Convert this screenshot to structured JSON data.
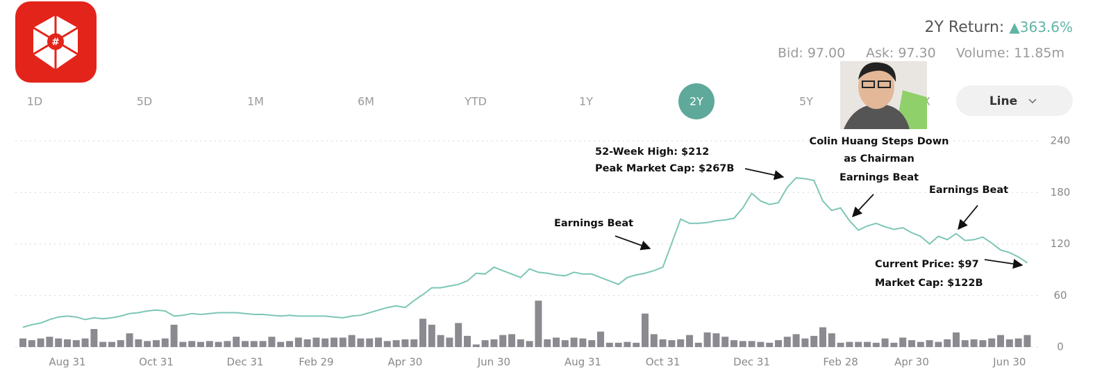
{
  "header": {
    "return_label": "2Y Return:",
    "return_value": "▲363.6%",
    "bid": "Bid: 97.00",
    "ask": "Ask: 97.30",
    "volume": "Volume: 11.85m",
    "ranges": [
      "1D",
      "5D",
      "1M",
      "6M",
      "YTD",
      "1Y",
      "2Y",
      "5Y",
      "MAX"
    ],
    "selected_range": "2Y",
    "chart_style": "Line"
  },
  "chart_data": {
    "type": "line",
    "color": "#7cc6b6",
    "volume_color": "#8b8a90",
    "grid": true,
    "ylim": [
      0,
      240
    ],
    "yticks": [
      0,
      60,
      120,
      180,
      240
    ],
    "categories": [
      null,
      null,
      null,
      null,
      null,
      "Aug 31",
      null,
      null,
      null,
      null,
      null,
      null,
      null,
      null,
      null,
      "Oct 31",
      null,
      null,
      null,
      null,
      null,
      null,
      null,
      null,
      null,
      "Dec 31",
      null,
      null,
      null,
      null,
      null,
      null,
      null,
      "Feb 29",
      null,
      null,
      null,
      null,
      null,
      null,
      null,
      null,
      null,
      "Apr 30",
      null,
      null,
      null,
      null,
      null,
      null,
      null,
      null,
      null,
      "Jun 30",
      null,
      null,
      null,
      null,
      null,
      null,
      null,
      null,
      null,
      "Aug 31",
      null,
      null,
      null,
      null,
      null,
      null,
      null,
      null,
      "Oct 31",
      null,
      null,
      null,
      null,
      null,
      null,
      null,
      null,
      null,
      "Dec 31",
      null,
      null,
      null,
      null,
      null,
      null,
      null,
      null,
      null,
      "Feb 28",
      null,
      null,
      null,
      null,
      null,
      null,
      null,
      "Apr 30",
      null,
      null,
      null,
      null,
      null,
      null,
      null,
      null,
      null,
      null,
      "Jun 30",
      null,
      null
    ],
    "values": [
      23,
      26,
      28,
      32,
      35,
      36,
      35,
      32,
      34,
      33,
      34,
      36,
      39,
      40,
      42,
      43,
      42,
      36,
      37,
      39,
      38,
      39,
      40,
      40,
      40,
      39,
      38,
      38,
      37,
      36,
      37,
      36,
      36,
      36,
      36,
      35,
      34,
      36,
      37,
      40,
      43,
      46,
      48,
      46,
      54,
      61,
      69,
      69,
      71,
      73,
      77,
      86,
      85,
      93,
      89,
      85,
      81,
      91,
      87,
      86,
      84,
      83,
      87,
      85,
      85,
      81,
      77,
      73,
      81,
      84,
      86,
      89,
      93,
      121,
      149,
      144,
      144,
      145,
      147,
      148,
      150,
      162,
      179,
      170,
      166,
      168,
      186,
      197,
      196,
      194,
      170,
      159,
      162,
      147,
      136,
      141,
      144,
      140,
      137,
      139,
      133,
      129,
      120,
      129,
      125,
      132,
      124,
      125,
      128,
      121,
      113,
      110,
      105,
      98
    ],
    "volume": [
      10,
      8,
      10,
      12,
      10,
      9,
      8,
      10,
      21,
      6,
      6,
      8,
      16,
      9,
      7,
      8,
      10,
      26,
      6,
      7,
      6,
      7,
      6,
      7,
      12,
      7,
      7,
      7,
      12,
      6,
      7,
      11,
      9,
      11,
      10,
      11,
      11,
      14,
      10,
      10,
      11,
      7,
      8,
      9,
      9,
      33,
      26,
      14,
      11,
      28,
      13,
      3,
      8,
      9,
      14,
      15,
      9,
      7,
      54,
      9,
      11,
      8,
      11,
      10,
      8,
      18,
      5,
      5,
      6,
      5,
      39,
      15,
      9,
      8,
      9,
      14,
      5,
      17,
      16,
      12,
      8,
      7,
      7,
      6,
      5,
      8,
      12,
      15,
      10,
      13,
      23,
      16,
      5,
      6,
      6,
      6,
      5,
      10,
      5,
      11,
      8,
      6,
      8,
      6,
      9,
      17,
      8,
      9,
      8,
      10,
      14,
      9,
      10,
      14
    ],
    "annotations": [
      {
        "lines": [
          "52-Week High: $212",
          "Peak Market Cap: $267B"
        ]
      },
      {
        "lines": [
          "Earnings Beat"
        ]
      },
      {
        "lines": [
          "Colin Huang Steps Down",
          "as Chairman"
        ]
      },
      {
        "lines": [
          "Earnings Beat"
        ]
      },
      {
        "lines": [
          "Earnings Beat"
        ]
      },
      {
        "lines": [
          "Current Price: $97",
          "Market Cap: $122B"
        ]
      }
    ]
  }
}
